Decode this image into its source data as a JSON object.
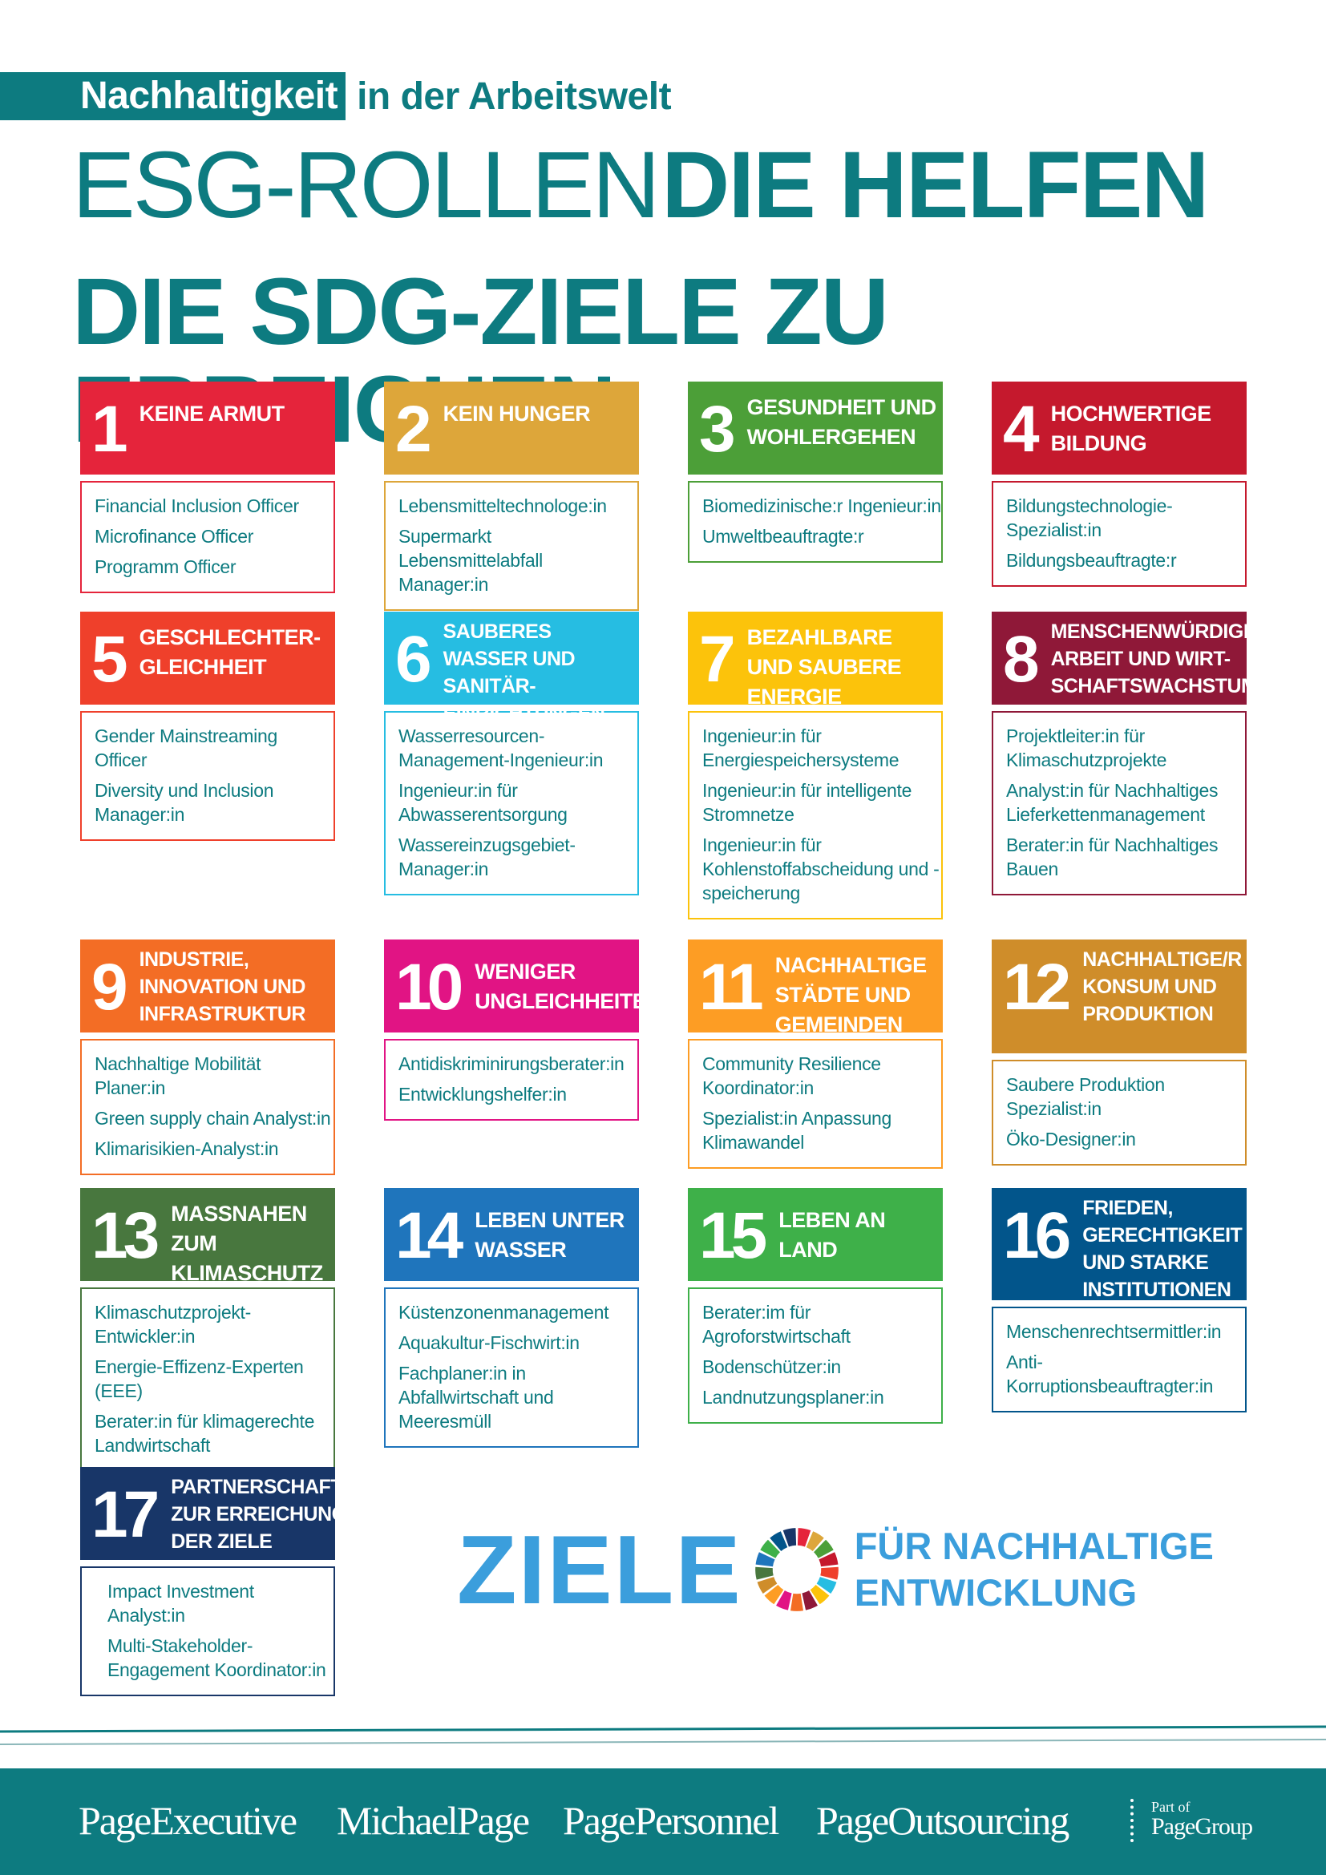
{
  "header": {
    "kicker_highlight": "Nachhaltigkeit",
    "kicker_rest": "in der Arbeitswelt",
    "title_line1_light": "ESG-ROLLEN",
    "title_line1_bold": "DIE HELFEN",
    "title_line2": "DIE SDG-ZIELE ZU ERREICHEN"
  },
  "goals": [
    {
      "number": "1",
      "title": "KEINE ARMUT",
      "color": "#e5243b",
      "roles": [
        "Financial Inclusion Officer",
        "Microfinance Officer",
        "Programm Officer"
      ]
    },
    {
      "number": "2",
      "title": "KEIN HUNGER",
      "color": "#dda63a",
      "roles": [
        "Lebensmitteltechnologe:in",
        "Supermarkt Lebensmittelabfall Manager:in"
      ]
    },
    {
      "number": "3",
      "title": "GESUNDHEIT UND WOHLERGEHEN",
      "color": "#4c9f38",
      "roles": [
        "Biomedizinische:r Ingenieur:in",
        "Umweltbeauftragte:r"
      ]
    },
    {
      "number": "4",
      "title": "HOCHWERTIGE BILDUNG",
      "color": "#c5192d",
      "roles": [
        "Bildungstechnologie-Spezialist:in",
        "Bildungsbeauftragte:r"
      ]
    },
    {
      "number": "5",
      "title": "GESCHLECHTER-GLEICHHEIT",
      "color": "#ef402b",
      "roles": [
        "Gender Mainstreaming Officer",
        "Diversity und Inclusion Manager:in"
      ]
    },
    {
      "number": "6",
      "title": "SAUBERES WASSER UND SANITÄR-EINRICHTUNGEN",
      "color": "#26bde2",
      "roles": [
        "Wasserresourcen-Management-Ingenieur:in",
        "Ingenieur:in für Abwasserentsorgung",
        "Wassereinzugsgebiet-Manager:in"
      ]
    },
    {
      "number": "7",
      "title": "BEZAHLBARE UND SAUBERE ENERGIE",
      "color": "#fcc30b",
      "roles": [
        "Ingenieur:in für Energiespeichersysteme",
        "Ingenieur:in für intelligente Stromnetze",
        "Ingenieur:in für Kohlenstoffabscheidung und -speicherung"
      ]
    },
    {
      "number": "8",
      "title": "MENSCHENWÜRDIGE ARBEIT UND WIRT-SCHAFTSWACHSTUM",
      "color": "#8f1838",
      "roles": [
        "Projektleiter:in für Klimaschutzprojekte",
        "Analyst:in für Nachhaltiges Lieferkettenmanagement",
        "Berater:in für Nachhaltiges Bauen"
      ]
    },
    {
      "number": "9",
      "title": "INDUSTRIE, INNOVATION UND INFRASTRUKTUR",
      "color": "#f36d25",
      "roles": [
        "Nachhaltige Mobilität Planer:in",
        "Green supply chain Analyst:in",
        "Klimarisikien-Analyst:in"
      ]
    },
    {
      "number": "10",
      "title": "WENIGER UNGLEICHHEITEN",
      "color": "#e11484",
      "roles": [
        "Antidiskriminirungsberater:in",
        "Entwicklungshelfer:in"
      ]
    },
    {
      "number": "11",
      "title": "NACHHALTIGE STÄDTE UND GEMEINDEN",
      "color": "#fd9d24",
      "roles": [
        "Community Resilience Koordinator:in",
        "Spezialist:in Anpassung Klimawandel"
      ]
    },
    {
      "number": "12",
      "title": "NACHHALTIGE/R KONSUM UND PRODUKTION",
      "color": "#cf8d2a",
      "roles": [
        "Saubere Produktion Spezialist:in",
        "Öko-Designer:in"
      ]
    },
    {
      "number": "13",
      "title": "MASSNAHEN ZUM KLIMASCHUTZ",
      "color": "#48773e",
      "roles": [
        "Klimaschutzprojekt-Entwickler:in",
        "Energie-Effizenz-Experten (EEE)",
        "Berater:in für klimagerechte Landwirtschaft"
      ]
    },
    {
      "number": "14",
      "title": "LEBEN UNTER WASSER",
      "color": "#1f75bc",
      "roles": [
        "Küstenzonenmanagement",
        "Aquakultur-Fischwirt:in",
        "Fachplaner:in in Abfallwirtschaft und Meeresmüll"
      ]
    },
    {
      "number": "15",
      "title": "LEBEN AN LAND",
      "color": "#3eb049",
      "roles": [
        "Berater:im für Agroforstwirtschaft",
        "Bodenschützer:in",
        "Landnutzungsplaner:in"
      ]
    },
    {
      "number": "16",
      "title": "FRIEDEN, GERECHTIGKEIT UND STARKE INSTITUTIONEN",
      "color": "#02558b",
      "roles": [
        "Menschenrechtsermittler:in",
        "Anti-Korruptionsbeauftragter:in"
      ]
    },
    {
      "number": "17",
      "title": "PARTNERSCHAFTEN ZUR ERREICHUNG DER ZIELE",
      "color": "#183668",
      "roles": [
        "Impact Investment Analyst:in",
        "Multi-Stakeholder-Engagement Koordinator:in"
      ]
    }
  ],
  "sdg_logo": {
    "main": "ZIELE",
    "sub_line1": "FÜR NACHHALTIGE",
    "sub_line2": "ENTWICKLUNG"
  },
  "footer": {
    "brands": [
      "PageExecutive",
      "MichaelPage",
      "PagePersonnel",
      "PageOutsourcing"
    ],
    "part_of": "Part of",
    "group": "PageGroup"
  },
  "colors": {
    "teal": "#0d7b80",
    "sdg_blue": "#3b9edc"
  }
}
